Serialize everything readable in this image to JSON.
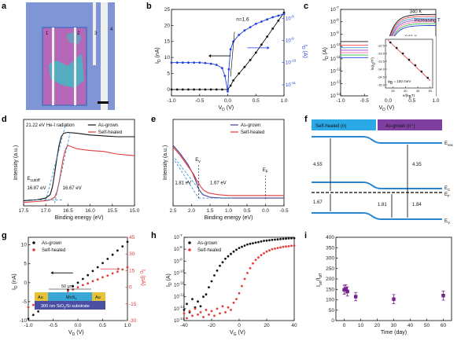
{
  "panel_labels": [
    "a",
    "b",
    "c",
    "d",
    "e",
    "f",
    "g",
    "h",
    "i"
  ],
  "panel_a": {
    "electrode_labels": [
      "1",
      "2",
      "3",
      "4"
    ],
    "colors": {
      "substrate": "#7f95d6",
      "flake": "#b568b8",
      "electrode": "#eeeeee",
      "defect": "#35c3c3"
    }
  },
  "panel_f": {
    "self_healed_label": "Self-healed (n)",
    "as_grown_label": "As-grown (n⁺)",
    "levels": [
      "E",
      "E",
      "E",
      "E"
    ],
    "level_subs": [
      "vac",
      "C",
      "F",
      "V"
    ],
    "gaps": [
      "4.55",
      "4.35",
      "1.67",
      "1.81",
      "1.84"
    ],
    "colors": {
      "band": "#2a87cf",
      "self_healed_box": "#2aa9e6",
      "as_grown_box": "#7f3fa0"
    }
  },
  "panel_g_inset": {
    "width_label": "50 μm",
    "contact_left": "Au",
    "contact_right": "Au",
    "channel": "MoS",
    "channel_sub": "2",
    "substrate_pre": "300 nm SiO",
    "substrate_sub": "2",
    "substrate_post": "/Si substrate",
    "colors": {
      "au": "#e6c23a",
      "mos2": "#3aa6d6",
      "substrate": "#4a4fa3"
    }
  },
  "chart_data": [
    {
      "panel": "b",
      "type": "line",
      "xlabel": "V",
      "xlabel_sub": "D",
      "xlabel_unit": " (V)",
      "ylabel_left": "I",
      "ylabel_left_sub": "D",
      "ylabel_left_unit": " (nA)",
      "ylabel_right": "I",
      "ylabel_right_sub": "D",
      "ylabel_right_unit": " (A)",
      "xlim": [
        -1.0,
        1.0
      ],
      "ylim_left": [
        -2,
        25
      ],
      "ylim_right_log": [
        -11.5,
        -7.6
      ],
      "xticks": [
        "-1.0",
        "-0.5",
        "0.0",
        "0.5",
        "1.0"
      ],
      "yticks_left": [
        "0",
        "5",
        "10",
        "15",
        "20",
        "25"
      ],
      "yticks_right": [
        "10",
        "10",
        "10",
        "10"
      ],
      "yticks_right_exp": [
        "-11",
        "-10",
        "-9",
        "-8"
      ],
      "annotation": "n=1.6",
      "series": [
        {
          "color": "#111111",
          "axis": "left",
          "x": [
            -1.0,
            -0.9,
            -0.8,
            -0.7,
            -0.6,
            -0.5,
            -0.4,
            -0.3,
            -0.2,
            -0.1,
            0.0,
            0.05,
            0.1,
            0.2,
            0.3,
            0.4,
            0.5,
            0.6,
            0.7,
            0.8,
            0.9,
            1.0
          ],
          "y": [
            0.0,
            0.0,
            0.0,
            0.0,
            0.0,
            0.0,
            0.0,
            0.0,
            0.0,
            0.0,
            0.0,
            1.2,
            2.8,
            5.0,
            7.0,
            9.2,
            11.5,
            14.0,
            16.5,
            19.0,
            21.5,
            24.0
          ]
        },
        {
          "color": "#1f3fe0",
          "axis": "right_log",
          "x": [
            -1.0,
            -0.9,
            -0.8,
            -0.7,
            -0.6,
            -0.5,
            -0.4,
            -0.3,
            -0.2,
            -0.1,
            -0.05,
            0.0,
            0.02,
            0.05,
            0.1,
            0.2,
            0.3,
            0.4,
            0.5,
            0.6,
            0.7,
            0.8,
            0.9,
            1.0
          ],
          "y": [
            -10.0,
            -10.0,
            -10.0,
            -10.0,
            -10.0,
            -10.0,
            -10.02,
            -10.05,
            -10.1,
            -10.25,
            -10.6,
            -11.3,
            -10.3,
            -9.4,
            -9.05,
            -8.75,
            -8.55,
            -8.4,
            -8.25,
            -8.15,
            -8.05,
            -7.95,
            -7.88,
            -7.8
          ]
        }
      ]
    },
    {
      "panel": "c",
      "type": "line",
      "xlabel": "V",
      "xlabel_sub": "D",
      "xlabel_unit": " (V)",
      "ylabel": "I",
      "ylabel_sub": "D",
      "ylabel_unit": " (A)",
      "xlim": [
        -1.0,
        1.0
      ],
      "ylim_log": [
        -14,
        -7
      ],
      "xticks": [
        "-1.0",
        "-0.5",
        "0.0",
        "0.5",
        "1.0"
      ],
      "yticks": [
        "10",
        "10",
        "10",
        "10",
        "10",
        "10",
        "10",
        "10"
      ],
      "yticks_exp": [
        "-14",
        "-13",
        "-12",
        "-11",
        "-10",
        "-9",
        "-8",
        "-7"
      ],
      "annotations": [
        "340 K",
        "240 K",
        "Increasing T"
      ],
      "series": [
        {
          "color": "#111111",
          "reverse_log": -9.6,
          "forward_log": -7.4
        },
        {
          "color": "#ff4a4a",
          "reverse_log": -9.9,
          "forward_log": -7.55
        },
        {
          "color": "#3f9be0",
          "reverse_log": -10.1,
          "forward_log": -7.7
        },
        {
          "color": "#a53fd0",
          "reverse_log": -10.3,
          "forward_log": -7.85
        },
        {
          "color": "#ff7aa8",
          "reverse_log": -10.5,
          "forward_log": -8.0
        },
        {
          "color": "#35b84a",
          "reverse_log": -10.7,
          "forward_log": -8.15
        },
        {
          "color": "#1f3fe0",
          "reverse_log": -10.9,
          "forward_log": -8.3
        }
      ],
      "inset": {
        "ylabel": "ln(I",
        "ylabel_sub": "0",
        "ylabel_post": "/T²)",
        "xlabel": "e/(k",
        "xlabel_sub": "B",
        "xlabel_post": "T)",
        "annotation": "φ",
        "annotation_sub": "B",
        "annotation_post": " = 150 meV",
        "xticks": [
          "35",
          "40",
          "45",
          "50"
        ],
        "yticks": [
          "-32.5",
          "-33.0",
          "-33.5",
          "-34.0",
          "-34.5",
          "-35.0"
        ],
        "x": [
          34.0,
          36.5,
          39.0,
          41.5,
          44.0,
          46.5,
          49.0
        ],
        "y": [
          -32.3,
          -32.65,
          -33.0,
          -33.4,
          -33.75,
          -34.15,
          -34.55
        ]
      }
    },
    {
      "panel": "d",
      "type": "line",
      "xlabel": "Binding energy (eV)",
      "ylabel": "Intensity (a.u.)",
      "xlim": [
        17.5,
        15.0
      ],
      "ylim": [
        0,
        1
      ],
      "xticks": [
        "17.5",
        "17.0",
        "16.5",
        "16.0",
        "15.5",
        "15.0"
      ],
      "header": "21.22 eV He-I radiation",
      "annotations": [
        "E",
        "16.87 eV",
        "16.67 eV"
      ],
      "annotation_sub": "cutoff",
      "series": [
        {
          "name": "As-grown",
          "color": "#111111",
          "x": [
            17.5,
            17.2,
            17.0,
            16.9,
            16.85,
            16.8,
            16.75,
            16.7,
            16.65,
            16.6,
            16.5,
            16.3,
            16.0,
            15.7,
            15.4,
            15.0
          ],
          "y": [
            0.06,
            0.07,
            0.09,
            0.13,
            0.22,
            0.38,
            0.55,
            0.7,
            0.8,
            0.84,
            0.85,
            0.84,
            0.82,
            0.81,
            0.8,
            0.8
          ]
        },
        {
          "name": "Self-healed",
          "color": "#e43a3a",
          "x": [
            17.5,
            17.2,
            17.0,
            16.9,
            16.8,
            16.75,
            16.7,
            16.65,
            16.6,
            16.55,
            16.5,
            16.3,
            16.0,
            15.7,
            15.4,
            15.0
          ],
          "y": [
            0.04,
            0.05,
            0.06,
            0.07,
            0.1,
            0.16,
            0.27,
            0.42,
            0.57,
            0.66,
            0.7,
            0.66,
            0.64,
            0.63,
            0.6,
            0.58
          ]
        }
      ]
    },
    {
      "panel": "e",
      "type": "line",
      "xlabel": "Binding energy (eV)",
      "ylabel": "Intensity (a.u.)",
      "xlim": [
        2.5,
        -0.5
      ],
      "ylim": [
        0,
        1
      ],
      "xticks": [
        "2.5",
        "2.0",
        "1.5",
        "1.0",
        "0.5",
        "0.0",
        "-0.5"
      ],
      "annotations": [
        "E",
        "1.81 eV",
        "1.67 eV",
        "E"
      ],
      "annotation_subs": [
        "v",
        "F"
      ],
      "series": [
        {
          "name": "As-grown",
          "color": "#4b3b8f",
          "x": [
            2.5,
            2.3,
            2.1,
            1.95,
            1.85,
            1.8,
            1.7,
            1.5,
            1.2,
            0.8,
            0.4,
            0.0,
            -0.5
          ],
          "y": [
            0.7,
            0.6,
            0.48,
            0.36,
            0.25,
            0.19,
            0.13,
            0.1,
            0.09,
            0.09,
            0.09,
            0.09,
            0.09
          ]
        },
        {
          "name": "Self-healed",
          "color": "#e43a3a",
          "x": [
            2.5,
            2.3,
            2.1,
            1.95,
            1.85,
            1.75,
            1.67,
            1.55,
            1.3,
            1.0,
            0.6,
            0.2,
            0.0,
            -0.5
          ],
          "y": [
            0.68,
            0.58,
            0.46,
            0.37,
            0.29,
            0.22,
            0.18,
            0.15,
            0.13,
            0.12,
            0.12,
            0.12,
            0.12,
            0.12
          ]
        }
      ]
    },
    {
      "panel": "g",
      "type": "scatter",
      "xlabel": "V",
      "xlabel_sub": "D",
      "xlabel_unit": " (V)",
      "ylabel_left": "I",
      "ylabel_left_sub": "D",
      "ylabel_left_unit": " (nA)",
      "ylabel_right": "I",
      "ylabel_right_sub": "D",
      "ylabel_right_unit": " (pA)",
      "xlim": [
        -1.0,
        1.0
      ],
      "ylim_left": [
        -10,
        12
      ],
      "ylim_right": [
        -30,
        45
      ],
      "xticks": [
        "-1.0",
        "-0.5",
        "0.0",
        "0.5",
        "1.0"
      ],
      "yticks_left": [
        "-10",
        "-5",
        "0",
        "5",
        "10"
      ],
      "yticks_right": [
        "-30",
        "-15",
        "0",
        "15",
        "30",
        "45"
      ],
      "series": [
        {
          "name": "As-grown",
          "color": "#111111",
          "axis": "left",
          "x": [
            -1.0,
            -0.9,
            -0.8,
            -0.7,
            -0.6,
            -0.5,
            -0.4,
            -0.3,
            -0.2,
            -0.1,
            0.0,
            0.1,
            0.2,
            0.3,
            0.4,
            0.5,
            0.6,
            0.7,
            0.8,
            0.9,
            1.0
          ],
          "y": [
            -9.5,
            -8.5,
            -7.6,
            -6.6,
            -5.7,
            -4.7,
            -3.8,
            -2.8,
            -1.9,
            -0.9,
            0.0,
            1.0,
            2.0,
            3.1,
            4.1,
            5.2,
            6.3,
            7.4,
            8.5,
            9.6,
            10.8
          ]
        },
        {
          "name": "Self-healed",
          "color": "#e43a3a",
          "axis": "right",
          "x": [
            -1.0,
            -0.9,
            -0.8,
            -0.7,
            -0.6,
            -0.5,
            -0.4,
            -0.3,
            -0.2,
            -0.1,
            0.0,
            0.1,
            0.2,
            0.3,
            0.4,
            0.5,
            0.6,
            0.7,
            0.8,
            0.9,
            1.0
          ],
          "y": [
            -18,
            -16,
            -14,
            -12,
            -10.5,
            -8.5,
            -7,
            -5.5,
            -3.5,
            -2,
            0,
            2,
            3.5,
            5.5,
            7,
            9,
            10.5,
            12.5,
            14,
            16,
            18
          ]
        }
      ]
    },
    {
      "panel": "h",
      "type": "scatter",
      "xlabel": "V",
      "xlabel_sub": "G",
      "xlabel_unit": " (V)",
      "ylabel": "I",
      "ylabel_sub": "D",
      "ylabel_unit": " (A)",
      "xlim": [
        -40,
        40
      ],
      "ylim_log": [
        -14,
        -7
      ],
      "xticks": [
        "-40",
        "-20",
        "0",
        "20",
        "40"
      ],
      "yticks": [
        "10",
        "10",
        "10",
        "10",
        "10",
        "10",
        "10",
        "10"
      ],
      "yticks_exp": [
        "-14",
        "-13",
        "-12",
        "-11",
        "-10",
        "-9",
        "-8",
        "-7"
      ],
      "series": [
        {
          "name": "As-grown",
          "color": "#111111",
          "x": [
            -40,
            -38,
            -36,
            -34,
            -32,
            -30,
            -28,
            -26,
            -24,
            -22,
            -20,
            -18,
            -16,
            -14,
            -12,
            -10,
            -8,
            -6,
            -4,
            -2,
            0,
            2,
            4,
            6,
            8,
            10,
            12,
            14,
            16,
            18,
            20,
            22,
            24,
            26,
            28,
            30,
            32,
            34,
            36,
            38,
            40
          ],
          "y": [
            -13.1,
            -12.6,
            -13.3,
            -12.2,
            -12.9,
            -12.4,
            -12.8,
            -12.0,
            -11.8,
            -11.2,
            -10.7,
            -10.2,
            -9.8,
            -9.4,
            -9.1,
            -8.8,
            -8.6,
            -8.4,
            -8.2,
            -8.05,
            -7.9,
            -7.8,
            -7.7,
            -7.6,
            -7.55,
            -7.5,
            -7.45,
            -7.4,
            -7.35,
            -7.3,
            -7.28,
            -7.25,
            -7.22,
            -7.2,
            -7.18,
            -7.15,
            -7.13,
            -7.12,
            -7.1,
            -7.08,
            -7.07
          ]
        },
        {
          "name": "Self-healed",
          "color": "#e43a3a",
          "x": [
            -40,
            -38,
            -36,
            -34,
            -32,
            -30,
            -28,
            -26,
            -24,
            -22,
            -20,
            -18,
            -16,
            -14,
            -12,
            -10,
            -8,
            -6,
            -4,
            -2,
            0,
            2,
            4,
            6,
            8,
            10,
            12,
            14,
            16,
            18,
            20,
            22,
            24,
            26,
            28,
            30,
            32,
            34,
            36,
            38,
            40
          ],
          "y": [
            -13.4,
            -13.8,
            -13.2,
            -13.6,
            -13.0,
            -13.5,
            -13.3,
            -13.7,
            -13.1,
            -13.5,
            -13.2,
            -13.6,
            -13.0,
            -13.4,
            -12.8,
            -13.3,
            -12.9,
            -13.1,
            -12.5,
            -12.2,
            -11.7,
            -11.1,
            -10.5,
            -10.0,
            -9.6,
            -9.2,
            -8.9,
            -8.7,
            -8.5,
            -8.35,
            -8.2,
            -8.1,
            -8.0,
            -7.95,
            -7.9,
            -7.85,
            -7.8,
            -7.77,
            -7.75,
            -7.72,
            -7.7
          ]
        }
      ]
    },
    {
      "panel": "i",
      "type": "scatter",
      "xlabel": "Time (day)",
      "ylabel": "I",
      "ylabel_sub": "on",
      "ylabel_mid": "/I",
      "ylabel_sub2": "off",
      "xlim": [
        -5,
        65
      ],
      "ylim": [
        0,
        400
      ],
      "xticks": [
        "0",
        "10",
        "20",
        "30",
        "40",
        "50",
        "60"
      ],
      "yticks": [
        "0",
        "50",
        "100",
        "150",
        "200",
        "250",
        "300",
        "350",
        "400"
      ],
      "series": [
        {
          "color": "#7a1f8f",
          "x": [
            0,
            1,
            2,
            7,
            30,
            60
          ],
          "y": [
            148,
            152,
            140,
            115,
            103,
            120
          ],
          "err": [
            22,
            20,
            22,
            20,
            22,
            22
          ]
        }
      ]
    }
  ]
}
